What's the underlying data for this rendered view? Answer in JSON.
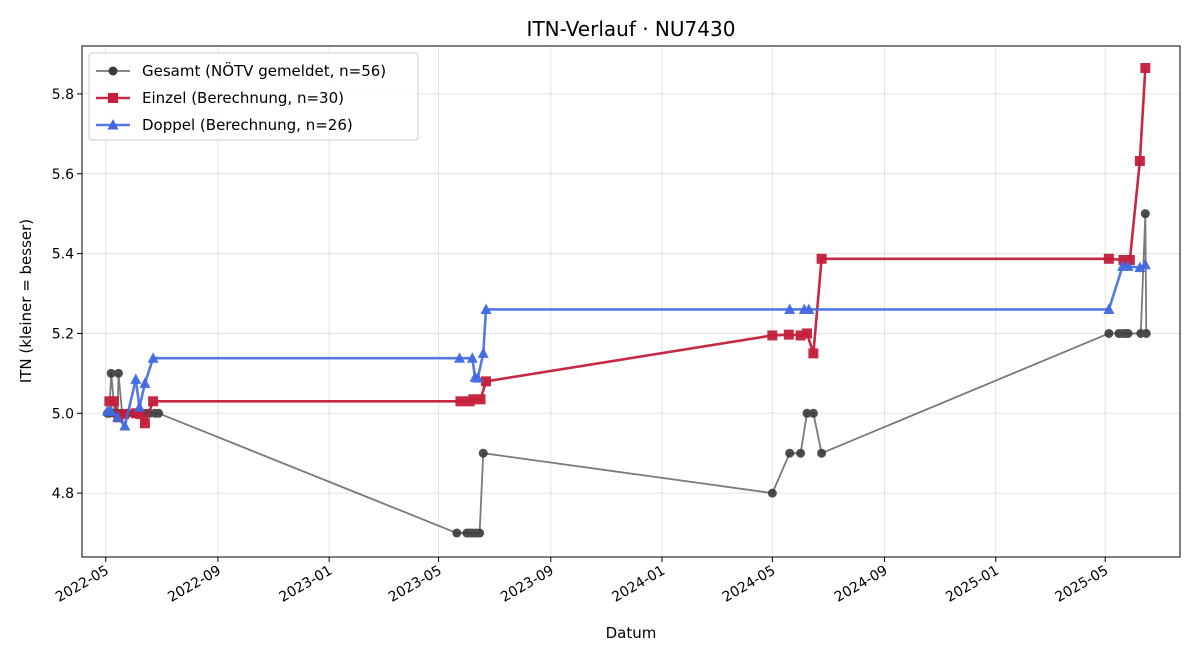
{
  "chart_data": {
    "type": "line",
    "title": "ITN-Verlauf · NU7430",
    "xlabel": "Datum",
    "ylabel": "ITN  (kleiner = besser)",
    "x_axis_type": "date",
    "xlim": [
      "2022-04-05",
      "2025-07-22"
    ],
    "ylim": [
      4.64,
      5.92
    ],
    "x_ticks": [
      "2022-05",
      "2022-09",
      "2023-01",
      "2023-05",
      "2023-09",
      "2024-01",
      "2024-05",
      "2024-09",
      "2025-01",
      "2025-05"
    ],
    "y_ticks": [
      4.8,
      5.0,
      5.2,
      5.4,
      5.6,
      5.8
    ],
    "grid": true,
    "legend_position": "top-left",
    "series": [
      {
        "name": "Gesamt (NÖTV gemeldet, n=56)",
        "color": "#555555",
        "marker": "circle",
        "points": [
          [
            "2022-05-03",
            5.0
          ],
          [
            "2022-05-05",
            5.0
          ],
          [
            "2022-05-07",
            5.1
          ],
          [
            "2022-05-11",
            5.0
          ],
          [
            "2022-05-14",
            5.0
          ],
          [
            "2022-05-15",
            5.1
          ],
          [
            "2022-05-19",
            5.0
          ],
          [
            "2022-05-25",
            5.0
          ],
          [
            "2022-06-01",
            5.0
          ],
          [
            "2022-06-05",
            5.0
          ],
          [
            "2022-06-10",
            5.0
          ],
          [
            "2022-06-15",
            5.0
          ],
          [
            "2022-06-18",
            5.0
          ],
          [
            "2022-06-24",
            5.0
          ],
          [
            "2022-06-28",
            5.0
          ],
          [
            "2023-05-21",
            4.7
          ],
          [
            "2023-06-01",
            4.7
          ],
          [
            "2023-06-04",
            4.7
          ],
          [
            "2023-06-07",
            4.7
          ],
          [
            "2023-06-11",
            4.7
          ],
          [
            "2023-06-15",
            4.7
          ],
          [
            "2023-06-19",
            4.9
          ],
          [
            "2024-05-01",
            4.8
          ],
          [
            "2024-05-20",
            4.9
          ],
          [
            "2024-06-01",
            4.9
          ],
          [
            "2024-06-08",
            5.0
          ],
          [
            "2024-06-15",
            5.0
          ],
          [
            "2024-06-24",
            4.9
          ],
          [
            "2025-05-05",
            5.2
          ],
          [
            "2025-05-16",
            5.2
          ],
          [
            "2025-05-20",
            5.2
          ],
          [
            "2025-05-23",
            5.2
          ],
          [
            "2025-05-26",
            5.2
          ],
          [
            "2025-06-09",
            5.2
          ],
          [
            "2025-06-14",
            5.5
          ],
          [
            "2025-06-15",
            5.2
          ]
        ]
      },
      {
        "name": "Einzel (Berechnung, n=30)",
        "color": "#c41e3a",
        "marker": "square",
        "points": [
          [
            "2022-05-05",
            5.03
          ],
          [
            "2022-05-10",
            5.03
          ],
          [
            "2022-05-15",
            4.99
          ],
          [
            "2022-05-21",
            4.998
          ],
          [
            "2022-06-03",
            5.0
          ],
          [
            "2022-06-08",
            4.998
          ],
          [
            "2022-06-13",
            4.975
          ],
          [
            "2022-06-22",
            5.03
          ],
          [
            "2023-05-25",
            5.03
          ],
          [
            "2023-06-04",
            5.03
          ],
          [
            "2023-06-08",
            5.035
          ],
          [
            "2023-06-16",
            5.035
          ],
          [
            "2023-06-22",
            5.08
          ],
          [
            "2024-05-01",
            5.195
          ],
          [
            "2024-05-19",
            5.197
          ],
          [
            "2024-06-01",
            5.195
          ],
          [
            "2024-06-08",
            5.2
          ],
          [
            "2024-06-15",
            5.15
          ],
          [
            "2024-06-24",
            5.387
          ],
          [
            "2025-05-05",
            5.387
          ],
          [
            "2025-05-21",
            5.384
          ],
          [
            "2025-05-28",
            5.384
          ],
          [
            "2025-06-08",
            5.632
          ],
          [
            "2025-06-14",
            5.865
          ]
        ]
      },
      {
        "name": "Doppel (Berechnung, n=26)",
        "color": "#4169e1",
        "marker": "triangle",
        "points": [
          [
            "2022-05-03",
            5.005
          ],
          [
            "2022-05-07",
            5.005
          ],
          [
            "2022-05-14",
            4.99
          ],
          [
            "2022-05-22",
            4.968
          ],
          [
            "2022-06-03",
            5.085
          ],
          [
            "2022-06-07",
            5.015
          ],
          [
            "2022-06-13",
            5.075
          ],
          [
            "2022-06-22",
            5.138
          ],
          [
            "2023-05-24",
            5.138
          ],
          [
            "2023-06-07",
            5.138
          ],
          [
            "2023-06-10",
            5.09
          ],
          [
            "2023-06-13",
            5.088
          ],
          [
            "2023-06-19",
            5.15
          ],
          [
            "2023-06-22",
            5.26
          ],
          [
            "2024-05-20",
            5.26
          ],
          [
            "2024-06-05",
            5.26
          ],
          [
            "2024-06-10",
            5.26
          ],
          [
            "2025-05-05",
            5.26
          ],
          [
            "2025-05-20",
            5.368
          ],
          [
            "2025-05-26",
            5.368
          ],
          [
            "2025-06-08",
            5.365
          ],
          [
            "2025-06-14",
            5.372
          ]
        ]
      }
    ]
  }
}
